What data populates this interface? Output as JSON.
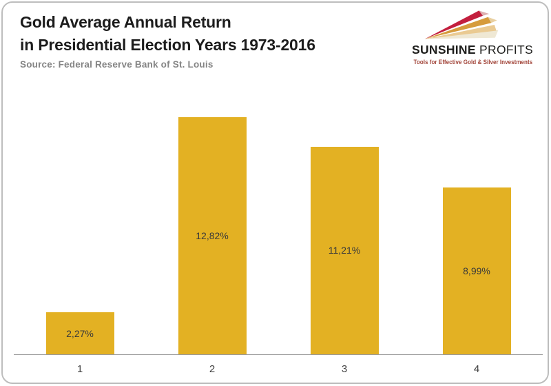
{
  "header": {
    "title_line1": "Gold Average Annual Return",
    "title_line2": "in Presidential Election Years 1973-2016",
    "source": "Source: Federal Reserve Bank of St. Louis"
  },
  "logo": {
    "name_bold": "SUNSHINE",
    "name_regular": "PROFITS",
    "tagline": "Tools for Effective Gold & Silver Investments",
    "colors": {
      "ray_red": "#c31f3e",
      "ray_red_tip": "#ddb0b0",
      "ray_gold": "#d69b3c",
      "ray_gold_tip": "#e8cfa0",
      "ray_tan": "#eaca92",
      "ray_pale": "#efe8d4",
      "text": "#1d1d1b",
      "tagline": "#a3473c"
    }
  },
  "chart_data": {
    "type": "bar",
    "title": "Gold Average Annual Return in Presidential Election Years 1973-2016",
    "categories": [
      "1",
      "2",
      "3",
      "4"
    ],
    "values": [
      2.27,
      12.82,
      11.21,
      8.99
    ],
    "value_labels": [
      "2,27%",
      "12,82%",
      "11,21%",
      "8,99%"
    ],
    "xlabel": "",
    "ylabel": "",
    "ylim": [
      0,
      14.7
    ],
    "grid": false,
    "legend": false,
    "bar_color": "#e3b123",
    "value_label_color": "#3a3a3a",
    "axis_line_color": "#9b9b9b"
  }
}
